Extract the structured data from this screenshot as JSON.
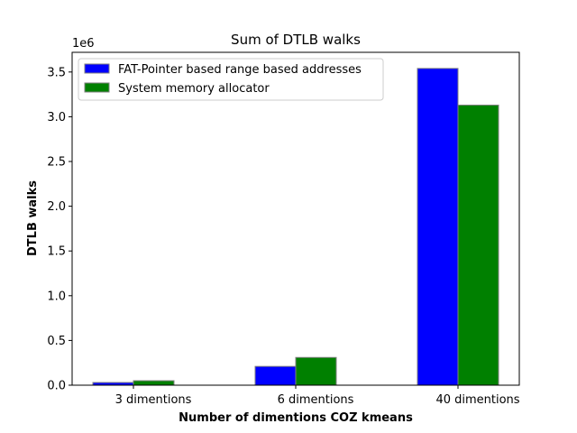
{
  "chart_data": {
    "type": "bar",
    "title": "Sum of DTLB walks",
    "xlabel": "Number of dimentions COZ kmeans",
    "ylabel": "DTLB walks",
    "y_offset_label": "1e6",
    "categories": [
      "3 dimentions",
      "6 dimentions",
      "40 dimentions"
    ],
    "series": [
      {
        "name": "FAT-Pointer based range based addresses",
        "color": "#0000ff",
        "values": [
          30000,
          210000,
          3540000
        ]
      },
      {
        "name": "System memory allocator",
        "color": "#008000",
        "values": [
          50000,
          310000,
          3130000
        ]
      }
    ],
    "ylim": [
      0,
      3720000
    ],
    "yticks": [
      {
        "value": 0,
        "label": "0.0"
      },
      {
        "value": 500000,
        "label": "0.5"
      },
      {
        "value": 1000000,
        "label": "1.0"
      },
      {
        "value": 1500000,
        "label": "1.5"
      },
      {
        "value": 2000000,
        "label": "2.0"
      },
      {
        "value": 2500000,
        "label": "2.5"
      },
      {
        "value": 3000000,
        "label": "3.0"
      },
      {
        "value": 3500000,
        "label": "3.5"
      }
    ],
    "grid": false,
    "legend": "top-left",
    "bar_edge_color": "#808080"
  }
}
